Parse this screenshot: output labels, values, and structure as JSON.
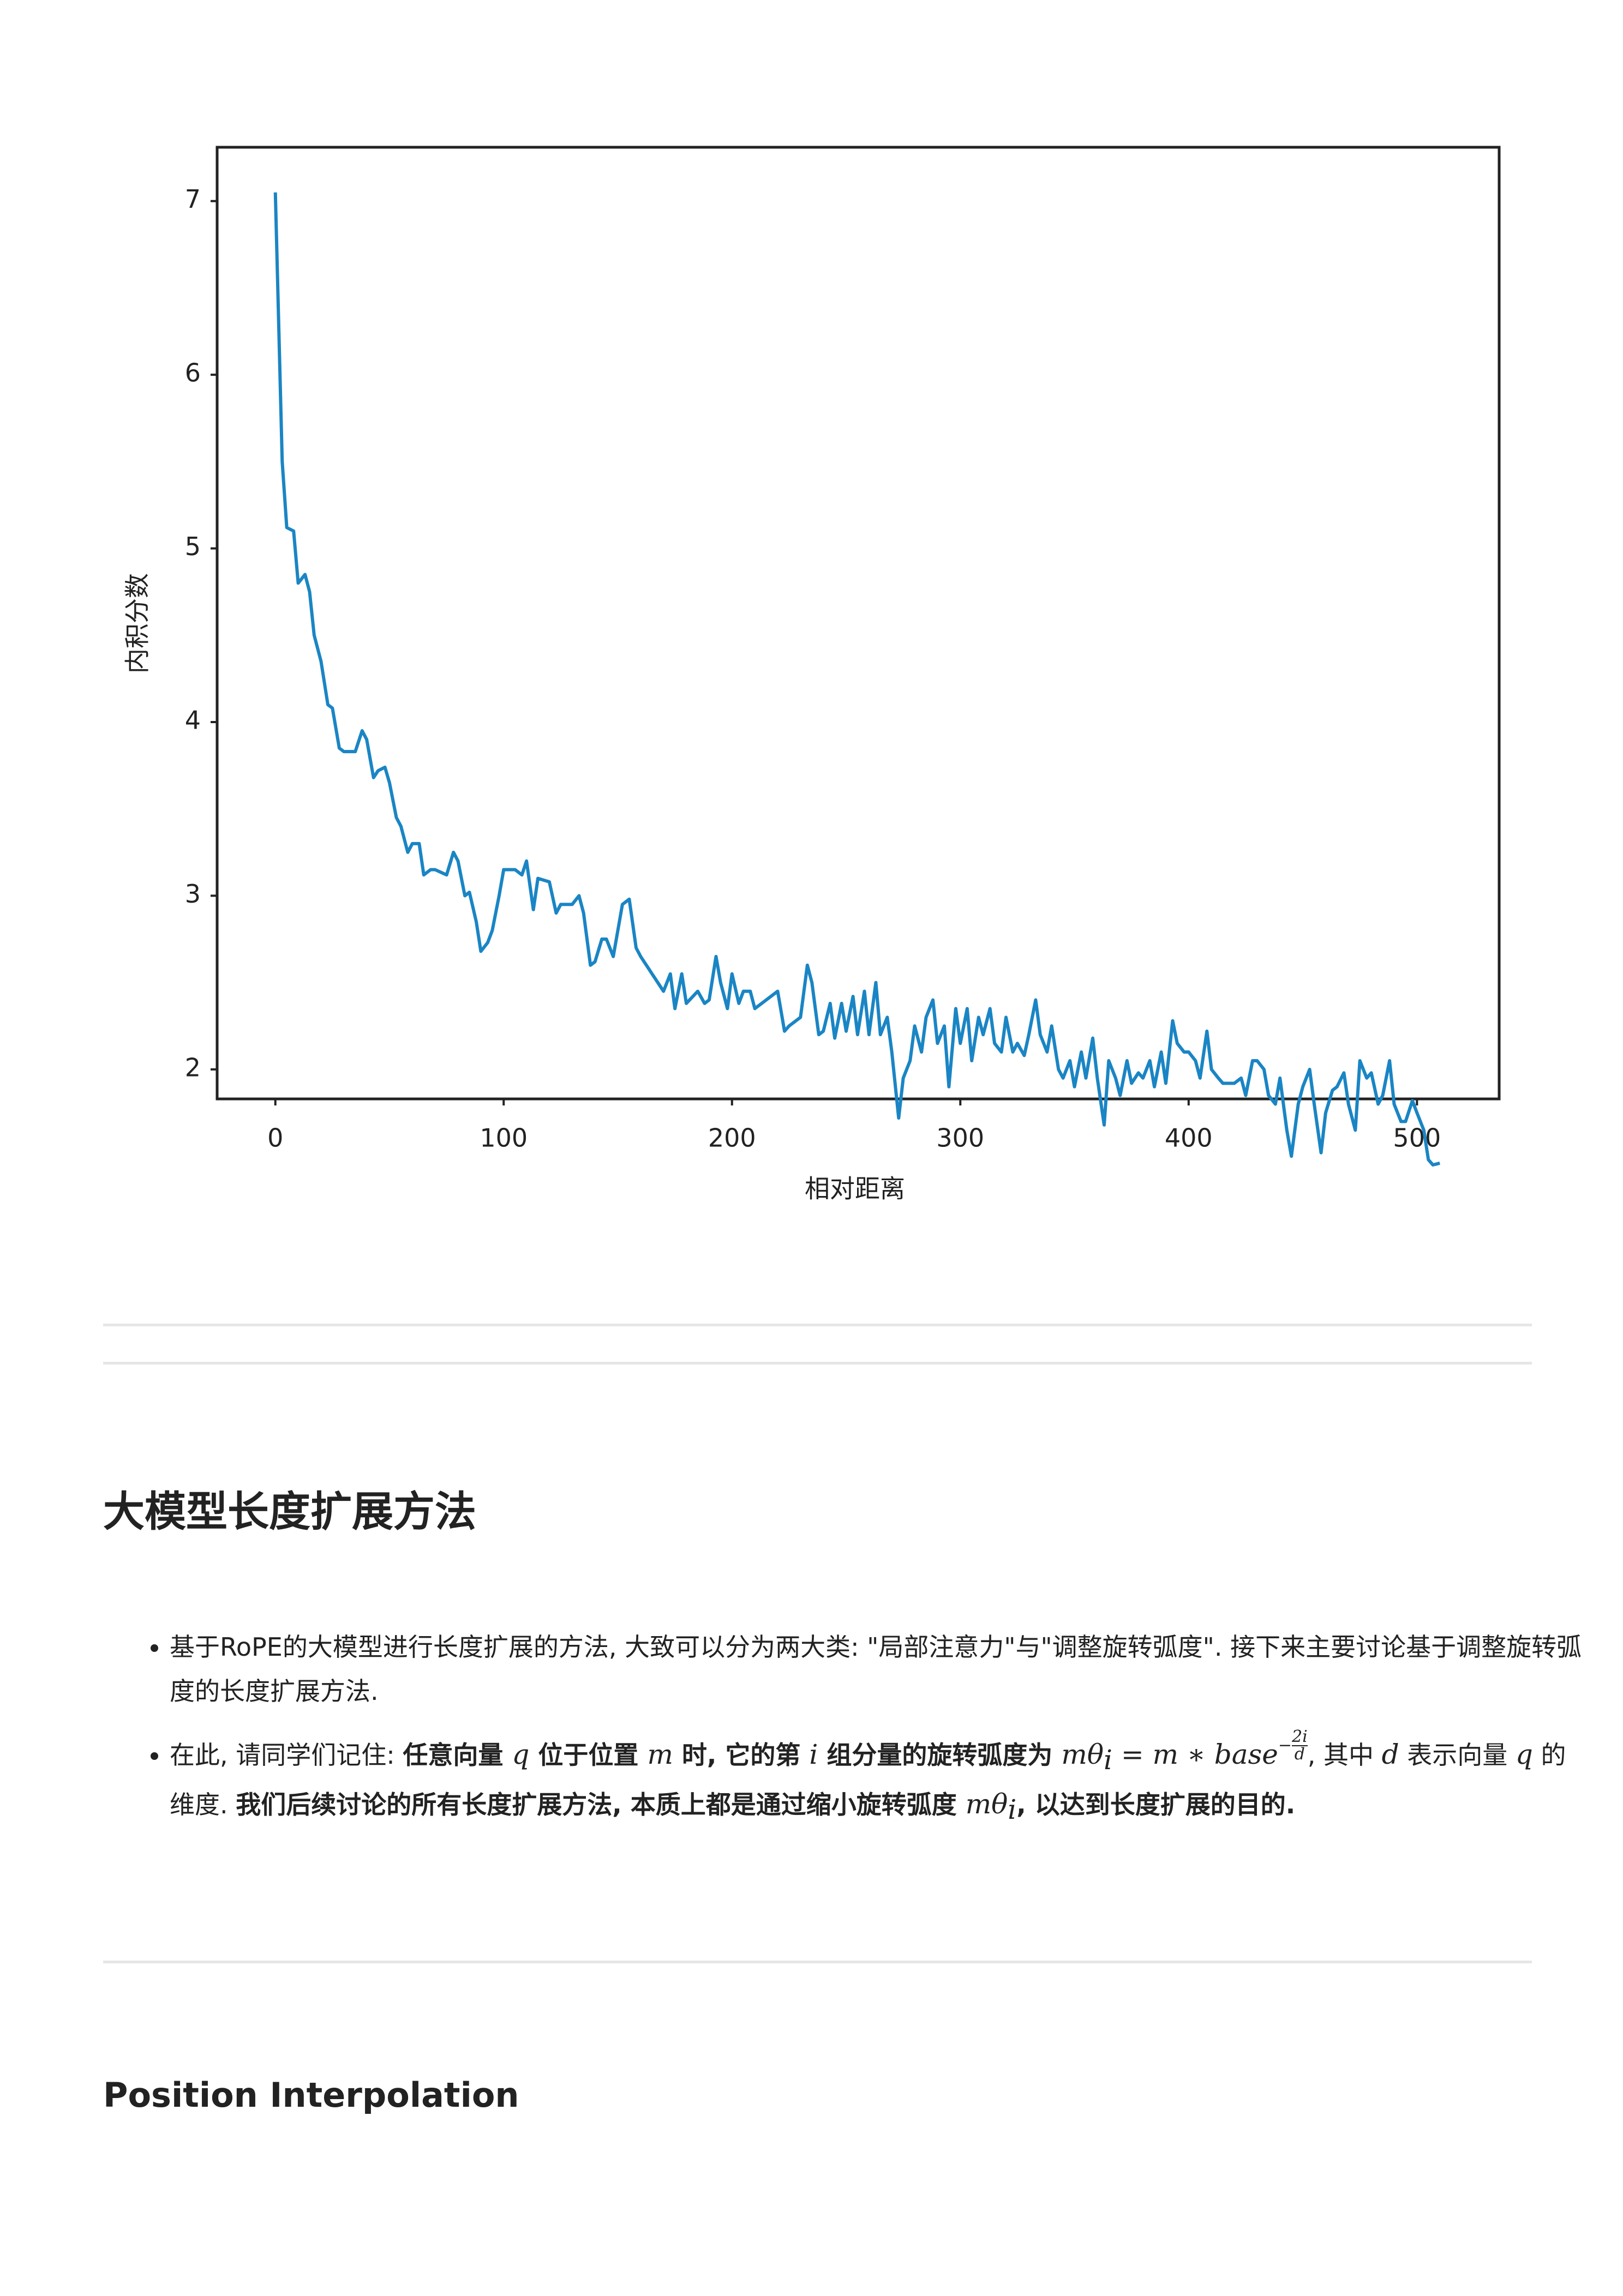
{
  "chart_data": {
    "type": "line",
    "xlabel": "相对距离",
    "ylabel": "内积分数",
    "xlim": [
      -25.5,
      536
    ],
    "ylim": [
      1.83,
      7.31
    ],
    "xticks": [
      0,
      100,
      200,
      300,
      400,
      500
    ],
    "yticks": [
      2,
      3,
      4,
      5,
      6,
      7
    ],
    "grid": false,
    "series": [
      {
        "color": "#1a85c4",
        "x": [
          0,
          3,
          5,
          8,
          10,
          13,
          15,
          17,
          20,
          23,
          25,
          28,
          30,
          35,
          38,
          40,
          43,
          45,
          48,
          50,
          53,
          55,
          58,
          60,
          63,
          65,
          68,
          70,
          75,
          78,
          80,
          83,
          85,
          88,
          90,
          93,
          95,
          98,
          100,
          105,
          108,
          110,
          113,
          115,
          120,
          123,
          125,
          130,
          133,
          135,
          138,
          140,
          143,
          145,
          148,
          152,
          155,
          158,
          160,
          165,
          170,
          173,
          175,
          178,
          180,
          185,
          188,
          190,
          193,
          195,
          198,
          200,
          203,
          205,
          208,
          210,
          215,
          220,
          223,
          225,
          230,
          233,
          235,
          238,
          240,
          243,
          245,
          248,
          250,
          253,
          255,
          258,
          260,
          263,
          265,
          268,
          270,
          273,
          275,
          278,
          280,
          283,
          285,
          288,
          290,
          293,
          295,
          298,
          300,
          303,
          305,
          308,
          310,
          313,
          315,
          318,
          320,
          323,
          325,
          328,
          330,
          333,
          335,
          338,
          340,
          343,
          345,
          348,
          350,
          353,
          355,
          358,
          360,
          363,
          365,
          368,
          370,
          373,
          375,
          378,
          380,
          383,
          385,
          388,
          390,
          393,
          395,
          398,
          400,
          403,
          405,
          408,
          410,
          413,
          415,
          420,
          423,
          425,
          428,
          430,
          433,
          435,
          438,
          440,
          443,
          445,
          448,
          450,
          453,
          455,
          458,
          460,
          463,
          465,
          468,
          470,
          473,
          475,
          478,
          480,
          483,
          485,
          488,
          490,
          493,
          495,
          498,
          500,
          503,
          505,
          507,
          510
        ],
        "values": [
          7.05,
          5.5,
          5.12,
          5.1,
          4.8,
          4.85,
          4.75,
          4.5,
          4.35,
          4.1,
          4.08,
          3.85,
          3.83,
          3.83,
          3.95,
          3.9,
          3.68,
          3.72,
          3.74,
          3.65,
          3.45,
          3.4,
          3.25,
          3.3,
          3.3,
          3.12,
          3.15,
          3.15,
          3.12,
          3.25,
          3.2,
          3.0,
          3.02,
          2.85,
          2.68,
          2.73,
          2.8,
          3.0,
          3.15,
          3.15,
          3.12,
          3.2,
          2.92,
          3.1,
          3.08,
          2.9,
          2.95,
          2.95,
          3.0,
          2.9,
          2.6,
          2.62,
          2.75,
          2.75,
          2.65,
          2.95,
          2.98,
          2.7,
          2.65,
          2.55,
          2.45,
          2.55,
          2.35,
          2.55,
          2.38,
          2.45,
          2.38,
          2.4,
          2.65,
          2.5,
          2.35,
          2.55,
          2.38,
          2.45,
          2.45,
          2.35,
          2.4,
          2.45,
          2.22,
          2.25,
          2.3,
          2.6,
          2.5,
          2.2,
          2.22,
          2.38,
          2.18,
          2.38,
          2.22,
          2.42,
          2.2,
          2.45,
          2.2,
          2.5,
          2.2,
          2.3,
          2.1,
          1.72,
          1.95,
          2.05,
          2.25,
          2.1,
          2.3,
          2.4,
          2.15,
          2.25,
          1.9,
          2.35,
          2.15,
          2.35,
          2.05,
          2.3,
          2.2,
          2.35,
          2.15,
          2.1,
          2.3,
          2.1,
          2.15,
          2.08,
          2.2,
          2.4,
          2.2,
          2.1,
          2.25,
          2.0,
          1.95,
          2.05,
          1.9,
          2.1,
          1.95,
          2.18,
          1.95,
          1.68,
          2.05,
          1.95,
          1.85,
          2.05,
          1.92,
          1.98,
          1.95,
          2.05,
          1.9,
          2.1,
          1.92,
          2.28,
          2.15,
          2.1,
          2.1,
          2.05,
          1.95,
          2.22,
          2.0,
          1.95,
          1.92,
          1.92,
          1.95,
          1.85,
          2.05,
          2.05,
          2.0,
          1.85,
          1.8,
          1.95,
          1.65,
          1.5,
          1.8,
          1.9,
          2.0,
          1.8,
          1.52,
          1.75,
          1.88,
          1.9,
          1.98,
          1.8,
          1.65,
          2.05,
          1.95,
          1.98,
          1.8,
          1.85,
          2.05,
          1.8,
          1.7,
          1.7,
          1.82,
          1.75,
          1.65,
          1.48,
          1.45,
          1.46
        ]
      }
    ]
  },
  "document": {
    "heading": "大模型长度扩展方法",
    "list": [
      "基于RoPE的大模型进行长度扩展的方法, 大致可以分为两大类: \"局部注意力\"与\"调整旋转弧度\". 接下来主要讨论基于调整旋转弧度的长度扩展方法.",
      {
        "runs": [
          "在此, 请同学们记住: ",
          "任意向量 ",
          "q",
          " 位于位置 ",
          "m",
          " 时, 它的第 ",
          "i",
          " 组分量的旋转弧度为 ",
          "mθ",
          "i",
          " = m ∗ base",
          "−",
          "2i",
          "d",
          ", 其中 ",
          "d",
          " 表示向量 ",
          "q",
          " 的维度. ",
          "我们后续讨论的所有长度扩展方法, 本质上都是通过缩小旋转弧度 ",
          "mθ",
          "i",
          ", 以达到长度扩展的目的."
        ]
      }
    ],
    "subheading": "Position Interpolation"
  }
}
